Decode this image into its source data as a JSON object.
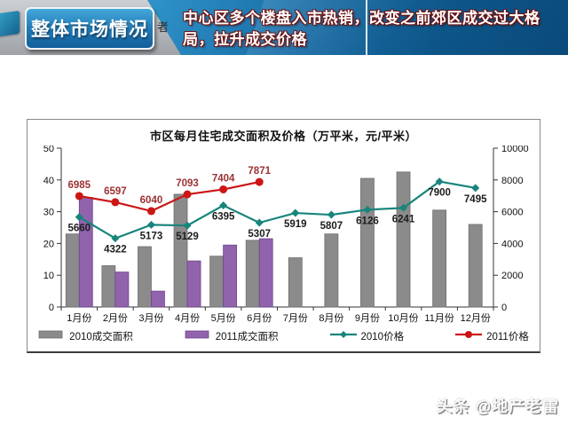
{
  "header": {
    "section_label": "整体市场情况",
    "subtitle_line1": "中心区多个楼盘入市热销，改变之前郊区成交过大格",
    "subtitle_line2": "局，拉升成交价格",
    "author_mark": "者"
  },
  "watermark": "头条 @地产老雷",
  "chart_data": {
    "type": "bar",
    "subtype": "combo-bar-line-dual-axis",
    "title": "市区每月住宅成交面积及价格（万平米，元/平米）",
    "categories": [
      "1月份",
      "2月份",
      "3月份",
      "4月份",
      "5月份",
      "6月份",
      "7月份",
      "8月份",
      "9月份",
      "10月份",
      "11月份",
      "12月份"
    ],
    "series": [
      {
        "name": "2010成交面积",
        "type": "bar",
        "axis": "left",
        "color": "#8b8b8b",
        "edge": "#6f6f6f",
        "values": [
          23,
          13,
          19,
          35.5,
          16,
          21,
          15.5,
          23,
          40.5,
          42.5,
          30.5,
          26
        ]
      },
      {
        "name": "2011成交面积",
        "type": "bar",
        "axis": "left",
        "color": "#9163ad",
        "edge": "#6e4589",
        "values": [
          34.5,
          11,
          5,
          14.5,
          19.5,
          21.5,
          null,
          null,
          null,
          null,
          null,
          null
        ]
      },
      {
        "name": "2010价格",
        "type": "line",
        "axis": "right",
        "color": "#17857c",
        "marker": "diamond",
        "label_color": "#1c1c1c",
        "values": [
          5660,
          4322,
          5173,
          5129,
          6395,
          5307,
          5919,
          5807,
          6126,
          6241,
          7900,
          7495
        ]
      },
      {
        "name": "2011价格",
        "type": "line",
        "axis": "right",
        "color": "#cc1515",
        "marker": "circle",
        "label_color": "#9c3133",
        "values": [
          6985,
          6597,
          6040,
          7093,
          7404,
          7871,
          null,
          null,
          null,
          null,
          null,
          null
        ]
      }
    ],
    "left_axis": {
      "min": 0,
      "max": 50,
      "step": 10,
      "ticks": [
        "0",
        "10",
        "20",
        "30",
        "40",
        "50"
      ]
    },
    "right_axis": {
      "min": 0,
      "max": 10000,
      "step": 2000,
      "ticks": [
        "0",
        "2000",
        "4000",
        "6000",
        "8000",
        "10000"
      ]
    },
    "legend_position": "bottom",
    "grid": false
  }
}
